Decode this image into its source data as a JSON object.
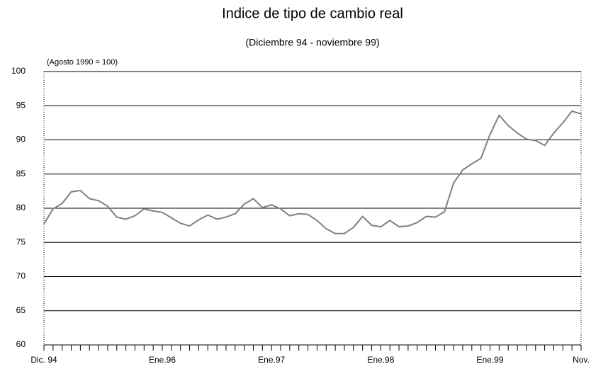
{
  "chart_data": {
    "type": "line",
    "title": "Indice de tipo de cambio real",
    "subtitle": "(Diciembre 94 - noviembre 99)",
    "annotation": "(Agosto 1990 = 100)",
    "categories": [
      "Dic. 94",
      null,
      null,
      null,
      null,
      null,
      null,
      null,
      null,
      null,
      null,
      null,
      null,
      "Ene.96",
      null,
      null,
      null,
      null,
      null,
      null,
      null,
      null,
      null,
      null,
      null,
      "Ene.97",
      null,
      null,
      null,
      null,
      null,
      null,
      null,
      null,
      null,
      null,
      null,
      "Ene.98",
      null,
      null,
      null,
      null,
      null,
      null,
      null,
      null,
      null,
      null,
      null,
      "Ene.99",
      null,
      null,
      null,
      null,
      null,
      null,
      null,
      null,
      null,
      "Nov."
    ],
    "values": [
      77.7,
      79.9,
      80.7,
      82.4,
      82.6,
      81.4,
      81.1,
      80.3,
      78.7,
      78.4,
      78.9,
      79.9,
      79.6,
      79.4,
      78.6,
      77.8,
      77.4,
      78.3,
      79.0,
      78.4,
      78.7,
      79.2,
      80.6,
      81.4,
      80.1,
      80.5,
      79.9,
      78.9,
      79.2,
      79.1,
      78.2,
      77.0,
      76.3,
      76.3,
      77.2,
      78.8,
      77.5,
      77.3,
      78.2,
      77.3,
      77.4,
      77.9,
      78.8,
      78.7,
      79.5,
      83.7,
      85.6,
      86.5,
      87.3,
      90.8,
      93.6,
      92.1,
      91.0,
      90.1,
      89.9,
      89.2,
      91.0,
      92.5,
      94.2,
      93.8
    ],
    "color": "#808080",
    "ylim": [
      60,
      100
    ],
    "yticks": [
      60,
      65,
      70,
      75,
      80,
      85,
      90,
      95,
      100
    ],
    "grid": true
  }
}
